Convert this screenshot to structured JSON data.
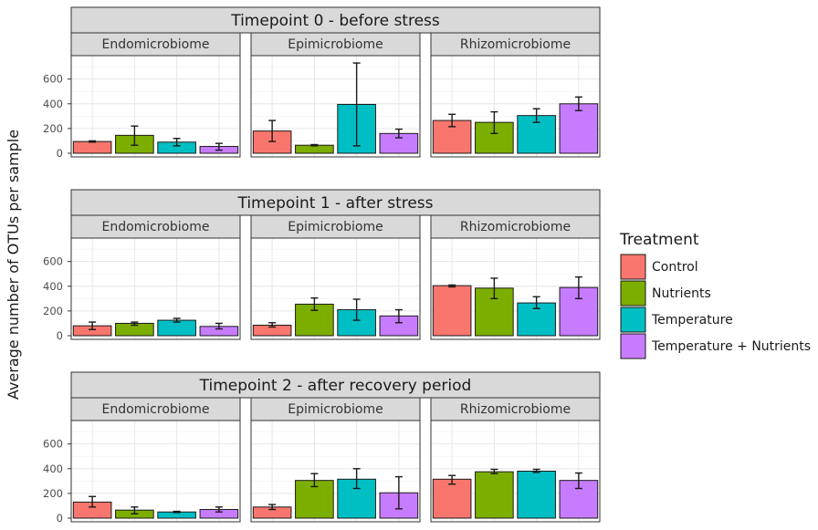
{
  "chart_data": {
    "type": "bar",
    "ylabel": "Average number of OTUs per sample",
    "xlabel": "",
    "ylim": [
      0,
      760
    ],
    "yticks": [
      0,
      200,
      400,
      600
    ],
    "grid": true,
    "legend": {
      "title": "Treatment",
      "position": "right",
      "entries": [
        {
          "label": "Control",
          "color": "#F8766D"
        },
        {
          "label": "Nutrients",
          "color": "#7CAE00"
        },
        {
          "label": "Temperature",
          "color": "#00BFC4"
        },
        {
          "label": "Temperature + Nutrients",
          "color": "#C77CFF"
        }
      ]
    },
    "categories": [
      "Control",
      "Nutrients",
      "Temperature",
      "Temperature + Nutrients"
    ],
    "panels": [
      {
        "title": "Timepoint 0 - before stress",
        "facets": [
          {
            "name": "Endomicrobiome",
            "values": [
              95,
              145,
              90,
              55
            ],
            "errors": [
              [
                90,
                100
              ],
              [
                65,
                220
              ],
              [
                60,
                120
              ],
              [
                25,
                80
              ]
            ]
          },
          {
            "name": "Epimicrobiome",
            "values": [
              180,
              65,
              395,
              160
            ],
            "errors": [
              [
                95,
                265
              ],
              [
                60,
                70
              ],
              [
                60,
                730
              ],
              [
                125,
                195
              ]
            ]
          },
          {
            "name": "Rhizomicrobiome",
            "values": [
              265,
              250,
              305,
              400
            ],
            "errors": [
              [
                215,
                315
              ],
              [
                160,
                335
              ],
              [
                250,
                360
              ],
              [
                345,
                455
              ]
            ]
          }
        ]
      },
      {
        "title": "Timepoint 1 - after stress",
        "facets": [
          {
            "name": "Endomicrobiome",
            "values": [
              80,
              100,
              125,
              75
            ],
            "errors": [
              [
                50,
                110
              ],
              [
                85,
                110
              ],
              [
                110,
                140
              ],
              [
                55,
                100
              ]
            ]
          },
          {
            "name": "Epimicrobiome",
            "values": [
              85,
              255,
              210,
              160
            ],
            "errors": [
              [
                70,
                105
              ],
              [
                205,
                305
              ],
              [
                125,
                295
              ],
              [
                105,
                210
              ]
            ]
          },
          {
            "name": "Rhizomicrobiome",
            "values": [
              405,
              385,
              265,
              390
            ],
            "errors": [
              [
                395,
                410
              ],
              [
                300,
                465
              ],
              [
                220,
                315
              ],
              [
                300,
                475
              ]
            ]
          }
        ]
      },
      {
        "title": "Timepoint 2 - after recovery period",
        "facets": [
          {
            "name": "Endomicrobiome",
            "values": [
              130,
              65,
              50,
              70
            ],
            "errors": [
              [
                90,
                175
              ],
              [
                35,
                90
              ],
              [
                45,
                55
              ],
              [
                50,
                90
              ]
            ]
          },
          {
            "name": "Epimicrobiome",
            "values": [
              90,
              305,
              315,
              205
            ],
            "errors": [
              [
                70,
                110
              ],
              [
                255,
                360
              ],
              [
                240,
                400
              ],
              [
                75,
                335
              ]
            ]
          },
          {
            "name": "Rhizomicrobiome",
            "values": [
              315,
              375,
              380,
              305
            ],
            "errors": [
              [
                275,
                345
              ],
              [
                360,
                395
              ],
              [
                370,
                395
              ],
              [
                240,
                365
              ]
            ]
          }
        ]
      }
    ]
  }
}
